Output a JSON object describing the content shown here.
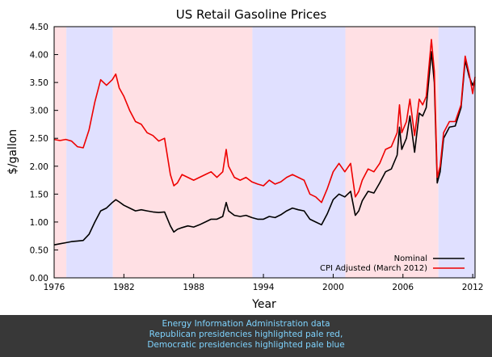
{
  "chart_data": {
    "type": "line",
    "title": "US Retail Gasoline Prices",
    "xlabel": "Year",
    "ylabel": "$/gallon",
    "xlim": [
      1976,
      2012.2
    ],
    "ylim": [
      0,
      4.5
    ],
    "x_ticks": [
      "1976",
      "1982",
      "1988",
      "1994",
      "2000",
      "2006",
      "2012"
    ],
    "y_ticks": [
      "0.00",
      "0.50",
      "1.00",
      "1.50",
      "2.00",
      "2.50",
      "3.00",
      "3.50",
      "4.00",
      "4.50"
    ],
    "grid": false,
    "legend_position": "bottom-right",
    "background_bands": [
      {
        "party": "Republican",
        "start": 1976,
        "end": 1977.05,
        "color": "#ffe0e4"
      },
      {
        "party": "Democratic",
        "start": 1977.05,
        "end": 1981.05,
        "color": "#e0e0ff"
      },
      {
        "party": "Republican",
        "start": 1981.05,
        "end": 1993.05,
        "color": "#ffe0e4"
      },
      {
        "party": "Democratic",
        "start": 1993.05,
        "end": 2001.05,
        "color": "#e0e0ff"
      },
      {
        "party": "Republican",
        "start": 2001.05,
        "end": 2009.05,
        "color": "#ffe0e4"
      },
      {
        "party": "Democratic",
        "start": 2009.05,
        "end": 2012.2,
        "color": "#e0e0ff"
      }
    ],
    "series": [
      {
        "name": "Nominal",
        "color": "#000000",
        "x": [
          1976.0,
          1976.5,
          1977.0,
          1977.5,
          1978.0,
          1978.5,
          1979.0,
          1979.5,
          1980.0,
          1980.5,
          1981.0,
          1981.3,
          1981.6,
          1982.0,
          1982.5,
          1983.0,
          1983.5,
          1984.0,
          1984.5,
          1985.0,
          1985.5,
          1986.0,
          1986.3,
          1986.6,
          1987.0,
          1987.5,
          1988.0,
          1988.5,
          1989.0,
          1989.5,
          1990.0,
          1990.5,
          1990.8,
          1991.0,
          1991.5,
          1992.0,
          1992.5,
          1993.0,
          1993.5,
          1994.0,
          1994.5,
          1995.0,
          1995.5,
          1996.0,
          1996.5,
          1997.0,
          1997.5,
          1998.0,
          1998.5,
          1999.0,
          1999.5,
          2000.0,
          2000.5,
          2001.0,
          2001.5,
          2001.9,
          2002.2,
          2002.5,
          2003.0,
          2003.5,
          2004.0,
          2004.5,
          2005.0,
          2005.5,
          2005.7,
          2005.9,
          2006.3,
          2006.6,
          2007.0,
          2007.4,
          2007.7,
          2008.0,
          2008.45,
          2008.7,
          2008.95,
          2009.2,
          2009.5,
          2010.0,
          2010.5,
          2011.0,
          2011.35,
          2011.7,
          2012.0,
          2012.2
        ],
        "y": [
          0.59,
          0.61,
          0.63,
          0.65,
          0.66,
          0.67,
          0.78,
          1.0,
          1.2,
          1.25,
          1.35,
          1.4,
          1.36,
          1.3,
          1.25,
          1.2,
          1.22,
          1.2,
          1.18,
          1.17,
          1.18,
          0.93,
          0.82,
          0.87,
          0.9,
          0.93,
          0.91,
          0.95,
          1.0,
          1.05,
          1.05,
          1.1,
          1.35,
          1.2,
          1.12,
          1.1,
          1.12,
          1.08,
          1.05,
          1.05,
          1.1,
          1.08,
          1.13,
          1.2,
          1.25,
          1.22,
          1.2,
          1.05,
          1.0,
          0.95,
          1.15,
          1.4,
          1.5,
          1.45,
          1.55,
          1.12,
          1.2,
          1.38,
          1.55,
          1.52,
          1.7,
          1.9,
          1.95,
          2.2,
          2.7,
          2.3,
          2.5,
          2.9,
          2.25,
          2.95,
          2.9,
          3.05,
          4.05,
          3.5,
          1.7,
          1.9,
          2.5,
          2.7,
          2.72,
          3.05,
          3.9,
          3.6,
          3.45,
          3.55
        ]
      },
      {
        "name": "CPI Adjusted (March 2012)",
        "color": "#ee0000",
        "x": [
          1976.0,
          1976.5,
          1977.0,
          1977.5,
          1978.0,
          1978.5,
          1979.0,
          1979.5,
          1980.0,
          1980.5,
          1981.0,
          1981.3,
          1981.6,
          1982.0,
          1982.5,
          1983.0,
          1983.5,
          1984.0,
          1984.5,
          1985.0,
          1985.5,
          1986.0,
          1986.3,
          1986.6,
          1987.0,
          1987.5,
          1988.0,
          1988.5,
          1989.0,
          1989.5,
          1990.0,
          1990.5,
          1990.8,
          1991.0,
          1991.5,
          1992.0,
          1992.5,
          1993.0,
          1993.5,
          1994.0,
          1994.5,
          1995.0,
          1995.5,
          1996.0,
          1996.5,
          1997.0,
          1997.5,
          1998.0,
          1998.5,
          1999.0,
          1999.5,
          2000.0,
          2000.5,
          2001.0,
          2001.5,
          2001.9,
          2002.2,
          2002.5,
          2003.0,
          2003.5,
          2004.0,
          2004.5,
          2005.0,
          2005.5,
          2005.7,
          2005.9,
          2006.3,
          2006.6,
          2007.0,
          2007.4,
          2007.7,
          2008.0,
          2008.45,
          2008.7,
          2008.95,
          2009.2,
          2009.5,
          2010.0,
          2010.5,
          2011.0,
          2011.35,
          2011.7,
          2012.0,
          2012.2
        ],
        "y": [
          2.48,
          2.46,
          2.48,
          2.45,
          2.35,
          2.33,
          2.65,
          3.15,
          3.55,
          3.45,
          3.55,
          3.65,
          3.4,
          3.25,
          3.0,
          2.8,
          2.75,
          2.6,
          2.55,
          2.45,
          2.5,
          1.85,
          1.65,
          1.7,
          1.85,
          1.8,
          1.75,
          1.8,
          1.85,
          1.9,
          1.8,
          1.9,
          2.3,
          2.0,
          1.8,
          1.75,
          1.8,
          1.72,
          1.68,
          1.65,
          1.75,
          1.68,
          1.72,
          1.8,
          1.85,
          1.8,
          1.75,
          1.5,
          1.45,
          1.35,
          1.6,
          1.9,
          2.05,
          1.9,
          2.05,
          1.45,
          1.55,
          1.75,
          1.95,
          1.9,
          2.05,
          2.3,
          2.35,
          2.6,
          3.1,
          2.6,
          2.8,
          3.2,
          2.55,
          3.2,
          3.1,
          3.25,
          4.27,
          3.7,
          1.8,
          2.0,
          2.6,
          2.8,
          2.8,
          3.1,
          3.97,
          3.65,
          3.3,
          3.6
        ]
      }
    ]
  },
  "footer": {
    "lines": [
      "Energy Information Administration data",
      "Republican presidencies highlighted pale red,",
      "Democratic presidencies highlighted pale blue"
    ]
  }
}
